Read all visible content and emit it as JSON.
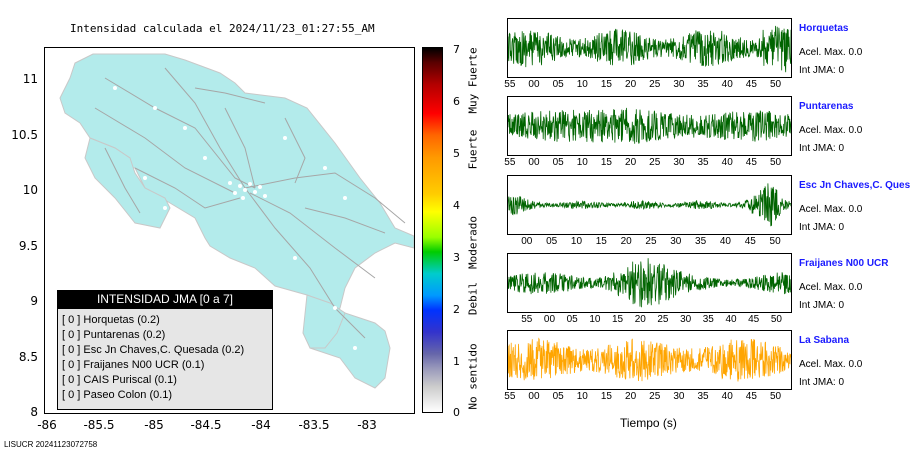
{
  "map": {
    "title": "Intensidad calculada el 2024/11/23_01:27:55_AM",
    "y_ticks": [
      "11",
      "10.5",
      "10",
      "9.5",
      "9",
      "8.5",
      "8"
    ],
    "x_ticks": [
      "-86",
      "-85.5",
      "-85",
      "-84.5",
      "-84",
      "-83.5",
      "-83"
    ],
    "land_color": "#b3ebeb",
    "road_color": "#a6a6a6"
  },
  "legend": {
    "title": "INTENSIDAD JMA [0 a 7]",
    "rows": [
      {
        "value": "[ 0 ]",
        "label": "Horquetas (0.2)"
      },
      {
        "value": "[ 0 ]",
        "label": "Puntarenas (0.2)"
      },
      {
        "value": "[ 0 ]",
        "label": "Esc Jn Chaves,C. Quesada (0.2)"
      },
      {
        "value": "[ 0 ]",
        "label": "Fraijanes N00 UCR (0.1)"
      },
      {
        "value": "[ 0 ]",
        "label": "CAIS Puriscal (0.1)"
      },
      {
        "value": "[ 0 ]",
        "label": "Paseo Colon (0.1)"
      }
    ]
  },
  "colorbar": {
    "numbers": [
      "7",
      "6",
      "5",
      "4",
      "3",
      "2",
      "1",
      "0"
    ],
    "categories": [
      "Muy Fuerte",
      "Fuerte",
      "Moderado",
      "Debil",
      "No sentido"
    ]
  },
  "chart_data": {
    "type": "line",
    "xlabel": "Tiempo (s)",
    "series": [
      {
        "name": "Horquetas",
        "acel": "Acel. Max. 0.0",
        "int": "Int JMA: 0",
        "color": "#006400",
        "ticks": [
          "55",
          "00",
          "05",
          "10",
          "15",
          "20",
          "25",
          "30",
          "35",
          "40",
          "45",
          "50"
        ]
      },
      {
        "name": "Puntarenas",
        "acel": "Acel. Max. 0.0",
        "int": "Int JMA: 0",
        "color": "#006400",
        "ticks": [
          "55",
          "00",
          "05",
          "10",
          "15",
          "20",
          "25",
          "30",
          "35",
          "40",
          "45",
          "50"
        ]
      },
      {
        "name": "Esc Jn Chaves,C. Ques",
        "acel": "Acel. Max. 0.0",
        "int": "Int JMA: 0",
        "color": "#006400",
        "ticks": [
          "00",
          "05",
          "10",
          "15",
          "20",
          "25",
          "30",
          "35",
          "40",
          "45",
          "50"
        ]
      },
      {
        "name": "Fraijanes N00 UCR",
        "acel": "Acel. Max. 0.0",
        "int": "Int JMA: 0",
        "color": "#006400",
        "ticks": [
          "55",
          "00",
          "05",
          "10",
          "15",
          "20",
          "25",
          "30",
          "35",
          "40",
          "45",
          "50"
        ]
      },
      {
        "name": "La Sabana",
        "acel": "Acel. Max. 0.0",
        "int": "Int JMA: 0",
        "color": "#ffa500",
        "ticks": [
          "55",
          "00",
          "05",
          "10",
          "15",
          "20",
          "25",
          "30",
          "35",
          "40",
          "45",
          "50"
        ]
      }
    ]
  },
  "footer": "LISUCR 20241123072758"
}
